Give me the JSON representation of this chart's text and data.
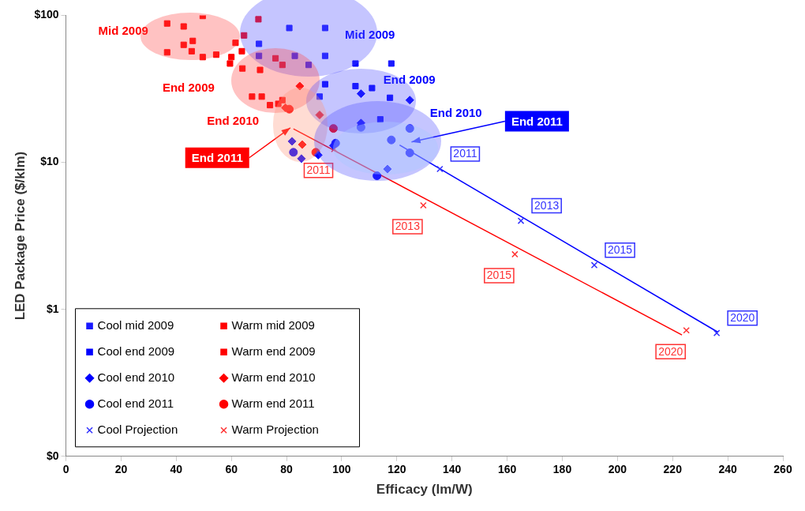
{
  "chart_data": {
    "type": "scatter",
    "xlabel": "Efficacy (lm/W)",
    "ylabel": "LED Package Price ($/klm)",
    "xlim": [
      0,
      260
    ],
    "xticks": [
      0,
      20,
      40,
      60,
      80,
      100,
      120,
      140,
      160,
      180,
      200,
      220,
      240,
      260
    ],
    "ylim": [
      0.1,
      100
    ],
    "yticks": [
      {
        "value": 100,
        "label": "$100"
      },
      {
        "value": 10,
        "label": "$10"
      },
      {
        "value": 1,
        "label": "$1"
      },
      {
        "value": 0.1,
        "label": "$0"
      }
    ],
    "log": "y",
    "grid": false,
    "legend": "bottom left",
    "series": [
      {
        "name": "Cool mid 2009",
        "color": "#1a1aff",
        "marker": "square",
        "x": [
          70,
          70,
          81,
          94,
          83,
          88,
          94,
          118,
          92
        ],
        "values": [
          64,
          53,
          82,
          82,
          53,
          46,
          53,
          47,
          28
        ]
      },
      {
        "name": "Warm mid 2009",
        "color": "#ff0000",
        "marker": "square",
        "x": [
          36.7,
          42.7,
          49.6,
          69.8,
          36.7,
          42.7,
          45.6,
          49.6,
          54.5,
          61.5,
          64.6,
          63.8
        ],
        "values": [
          88,
          84,
          99,
          94,
          56,
          63,
          57,
          52,
          54,
          65,
          73,
          57
        ]
      },
      {
        "name": "Cool end 2009",
        "color": "#0000ff",
        "marker": "square",
        "x": [
          105,
          105,
          94,
          111,
          117.5,
          114
        ],
        "values": [
          47,
          33,
          34,
          32,
          27.5,
          19.6
        ]
      },
      {
        "name": "Warm end 2009",
        "color": "#ff0000",
        "marker": "square",
        "x": [
          46,
          60,
          59.5,
          64,
          70.4,
          71,
          74,
          77,
          78.5,
          67.5,
          76,
          78.5
        ],
        "values": [
          67,
          52,
          47,
          43.5,
          42.5,
          28,
          24.5,
          25,
          26.5,
          28,
          51,
          46
        ]
      },
      {
        "name": "Cool end 2010",
        "color": "#0000ff",
        "marker": "diamond",
        "x": [
          124.7,
          107,
          107,
          116.6,
          91.5,
          85.4,
          82,
          97
        ],
        "values": [
          26.5,
          29.3,
          18.5,
          9,
          11.2,
          10.6,
          13.9,
          13
        ]
      },
      {
        "name": "Warm end 2010",
        "color": "#ff0000",
        "marker": "diamond",
        "x": [
          84.8,
          79.6,
          85.7,
          92
        ],
        "values": [
          33,
          23.5,
          13.2,
          21
        ]
      },
      {
        "name": "Cool end 2011",
        "color": "#0000ff",
        "marker": "circle",
        "x": [
          82.5,
          112.8,
          124.7,
          118,
          124.7,
          107,
          97.8
        ],
        "values": [
          11.7,
          8.1,
          17,
          14.2,
          11.6,
          17.3,
          13.5
        ]
      },
      {
        "name": "Warm end 2011",
        "color": "#ff0000",
        "marker": "circle",
        "x": [
          81,
          90.6,
          97
        ],
        "values": [
          23,
          11.7,
          17
        ]
      },
      {
        "name": "Cool Projection",
        "color": "#3333ff",
        "marker": "cross",
        "x": [
          135.6,
          165,
          191.6,
          236
        ],
        "values": [
          9,
          4,
          2,
          0.69
        ]
      },
      {
        "name": "Warm Projection",
        "color": "#ff3333",
        "marker": "cross",
        "x": [
          97.3,
          129.6,
          162.8,
          225
        ],
        "values": [
          12.3,
          5.1,
          2.37,
          0.72
        ]
      },
      {
        "type": "line",
        "color": "#0000ff",
        "marker": "none",
        "x": [
          121,
          236.4
        ],
        "values": [
          13.1,
          0.7
        ]
      },
      {
        "type": "line",
        "color": "#ff0000",
        "marker": "none",
        "x": [
          82.5,
          223.4
        ],
        "values": [
          16.9,
          0.67
        ]
      }
    ],
    "annotations": [
      "Mid 2009",
      "End 2009",
      "End 2010",
      "End 2011",
      "Mid 2009",
      "End 2009",
      "End 2010",
      "End 2011",
      {
        "text": "2011",
        "x": 135.6,
        "y": 9
      },
      {
        "text": "2013",
        "x": 165,
        "y": 4
      },
      {
        "text": "2015",
        "x": 191.6,
        "y": 2
      },
      {
        "text": "2020",
        "x": 236,
        "y": 0.69
      },
      {
        "text": "2011",
        "x": 97.3,
        "y": 12.3
      },
      {
        "text": "2013",
        "x": 129.6,
        "y": 5.1
      },
      {
        "text": "2015",
        "x": 162.8,
        "y": 2.37
      },
      {
        "text": "2020",
        "x": 225,
        "y": 0.72
      }
    ]
  }
}
